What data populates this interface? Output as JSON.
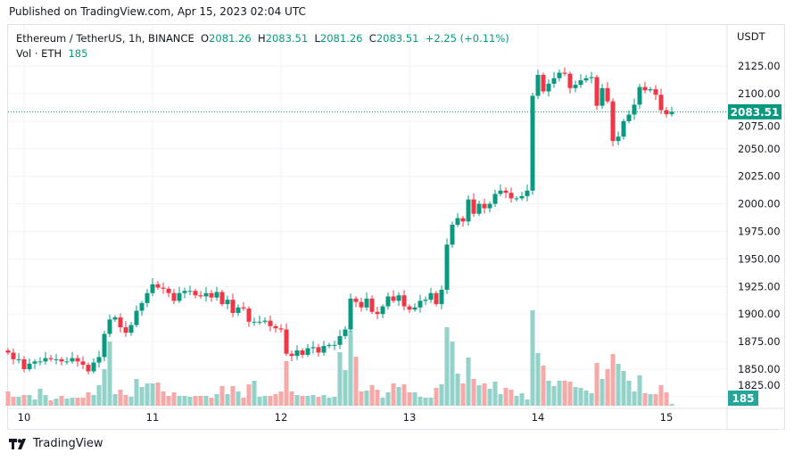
{
  "published": "Published on TradingView.com, Apr 15, 2023 02:04 UTC",
  "legend": {
    "symbol": "Ethereum / TetherUS, 1h, BINANCE",
    "o_label": "O",
    "o": "2081.26",
    "h_label": "H",
    "h": "2083.51",
    "l_label": "L",
    "l": "2081.26",
    "c_label": "C",
    "c": "2083.51",
    "change": "+2.25 (+0.11%)",
    "vol_label": "Vol · ETH",
    "vol": "185"
  },
  "price_axis": {
    "currency": "USDT",
    "last_price": "2083.51",
    "last_volume": "185"
  },
  "footer": {
    "brand": "TradingView"
  },
  "colors": {
    "up": "#089981",
    "down": "#f23645",
    "up_vol": "#93d2c8",
    "down_vol": "#f7a9a7",
    "grid": "#f0f3fa"
  },
  "chart_data": {
    "type": "candlestick",
    "title": "Ethereum / TetherUS, 1h, BINANCE",
    "ylabel": "USDT",
    "yticks": [
      2125,
      2100,
      2075,
      2050,
      2025,
      2000,
      1975,
      1950,
      1925,
      1900,
      1875,
      1850,
      1825
    ],
    "ylim": [
      1818,
      2140
    ],
    "xtick_labels": [
      {
        "label": "10",
        "index": 3
      },
      {
        "label": "11",
        "index": 27
      },
      {
        "label": "12",
        "index": 51
      },
      {
        "label": "13",
        "index": 75
      },
      {
        "label": "14",
        "index": 99
      },
      {
        "label": "15",
        "index": 123
      }
    ],
    "first_open": 1867,
    "closes": [
      1865,
      1859,
      1859,
      1850,
      1855,
      1857,
      1857,
      1860,
      1859,
      1859,
      1857,
      1857,
      1860,
      1857,
      1854,
      1848,
      1856,
      1861,
      1882,
      1895,
      1897,
      1888,
      1883,
      1890,
      1903,
      1910,
      1919,
      1927,
      1924,
      1923,
      1919,
      1912,
      1919,
      1921,
      1921,
      1917,
      1916,
      1919,
      1915,
      1920,
      1909,
      1913,
      1901,
      1906,
      1905,
      1893,
      1893,
      1893,
      1894,
      1889,
      1887,
      1886,
      1864,
      1862,
      1867,
      1863,
      1869,
      1870,
      1865,
      1871,
      1872,
      1872,
      1880,
      1886,
      1914,
      1911,
      1906,
      1914,
      1902,
      1900,
      1907,
      1916,
      1912,
      1917,
      1907,
      1904,
      1906,
      1912,
      1913,
      1919,
      1909,
      1922,
      1963,
      1981,
      1987,
      1984,
      2004,
      1991,
      2000,
      1996,
      2000,
      2009,
      2012,
      2010,
      2005,
      2005,
      2007,
      2012,
      2098,
      2117,
      2102,
      2109,
      2114,
      2119,
      2118,
      2105,
      2108,
      2112,
      2114,
      2115,
      2089,
      2105,
      2093,
      2057,
      2061,
      2075,
      2081,
      2090,
      2106,
      2103,
      2104,
      2099,
      2085,
      2081.26,
      2083.51
    ],
    "volumes": [
      1600,
      1000,
      1000,
      1200,
      1200,
      700,
      1900,
      1200,
      600,
      800,
      1100,
      800,
      900,
      900,
      900,
      1500,
      1200,
      2300,
      4100,
      7200,
      1300,
      1800,
      1200,
      1000,
      3000,
      2100,
      2500,
      2500,
      2600,
      1600,
      1100,
      1500,
      1100,
      1100,
      1000,
      1100,
      1100,
      1100,
      900,
      1300,
      2200,
      1300,
      2200,
      1600,
      900,
      2400,
      2800,
      1000,
      1100,
      1100,
      1300,
      1600,
      5000,
      1600,
      1200,
      1100,
      1100,
      1200,
      1000,
      1200,
      900,
      1000,
      6000,
      4000,
      8400,
      5500,
      1600,
      1700,
      2300,
      1800,
      900,
      1500,
      2500,
      2100,
      2400,
      1500,
      1500,
      1000,
      900,
      900,
      2000,
      2400,
      8800,
      7200,
      3600,
      2500,
      5400,
      3000,
      2300,
      2500,
      1900,
      2700,
      1300,
      2000,
      1800,
      1100,
      1400,
      700,
      10700,
      5900,
      4500,
      2800,
      2200,
      2800,
      2800,
      2700,
      2100,
      2000,
      1700,
      1400,
      4800,
      3000,
      4100,
      5800,
      4700,
      3900,
      2800,
      1600,
      3400,
      1400,
      1300,
      1300,
      2300,
      1500,
      185
    ]
  }
}
